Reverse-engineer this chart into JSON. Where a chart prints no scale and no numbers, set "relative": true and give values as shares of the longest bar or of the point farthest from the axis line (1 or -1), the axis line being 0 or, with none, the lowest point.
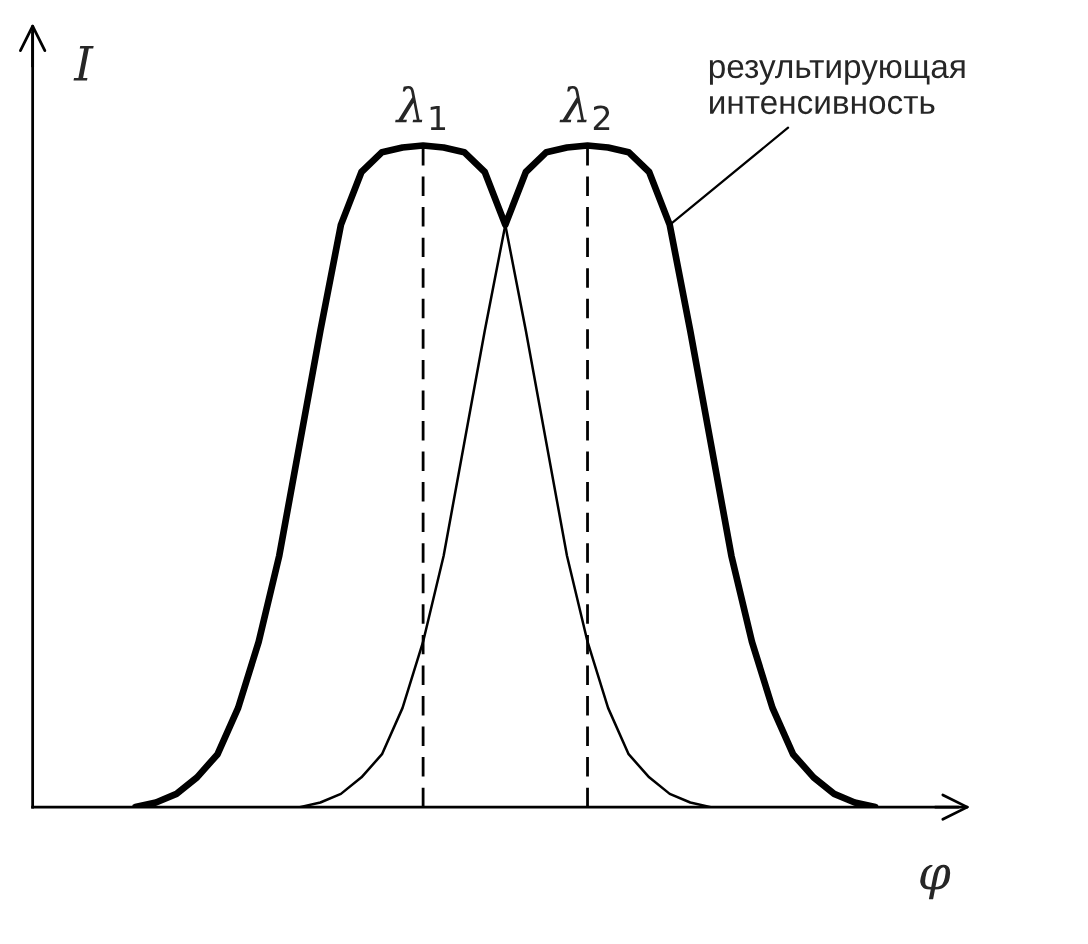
{
  "chart_data": {
    "type": "line",
    "relative": true,
    "xlabel": "φ",
    "ylabel": "I",
    "categories": [
      null,
      null,
      null,
      null,
      null,
      null,
      null,
      null,
      null,
      null,
      null,
      null,
      null,
      null,
      null,
      null,
      null,
      null,
      null,
      null,
      null,
      null,
      null,
      null,
      null,
      null,
      null,
      null,
      null,
      null,
      null,
      null,
      null,
      null,
      null,
      null,
      null
    ],
    "series": [
      {
        "color": "#000000",
        "values": [
          0,
          0.007,
          0.02,
          0.045,
          0.08,
          0.15,
          0.25,
          0.38,
          0.55,
          0.72,
          0.88,
          0.96,
          0.99,
          0.997,
          1,
          0.997,
          0.99,
          0.96,
          0.88,
          0.72,
          0.55,
          0.38,
          0.25,
          0.15,
          0.08,
          0.045,
          0.02,
          0.007,
          0,
          null,
          null,
          null,
          null,
          null,
          null,
          null,
          null
        ]
      },
      {
        "color": "#000000",
        "values": [
          null,
          null,
          null,
          null,
          null,
          null,
          null,
          null,
          0,
          0.007,
          0.02,
          0.045,
          0.08,
          0.15,
          0.25,
          0.38,
          0.55,
          0.72,
          0.88,
          0.96,
          0.99,
          0.997,
          1,
          0.997,
          0.99,
          0.96,
          0.88,
          0.72,
          0.55,
          0.38,
          0.25,
          0.15,
          0.08,
          0.045,
          0.02,
          0.007,
          0
        ]
      },
      {
        "color": "#000000",
        "values": [
          0,
          0.007,
          0.02,
          0.045,
          0.08,
          0.15,
          0.25,
          0.38,
          0.55,
          0.72,
          0.88,
          0.96,
          0.99,
          0.997,
          1,
          0.997,
          0.99,
          0.96,
          0.88,
          0.96,
          0.99,
          0.997,
          1,
          0.997,
          0.99,
          0.96,
          0.88,
          0.72,
          0.55,
          0.38,
          0.25,
          0.15,
          0.08,
          0.045,
          0.02,
          0.007,
          0
        ]
      }
    ],
    "annotations": [
      "λ$_{1}$",
      "λ$_{2}$",
      "результирующая\nинтенсивность"
    ],
    "line_style": "solid",
    "marker": "none",
    "legend": false,
    "tick_labels": false
  }
}
